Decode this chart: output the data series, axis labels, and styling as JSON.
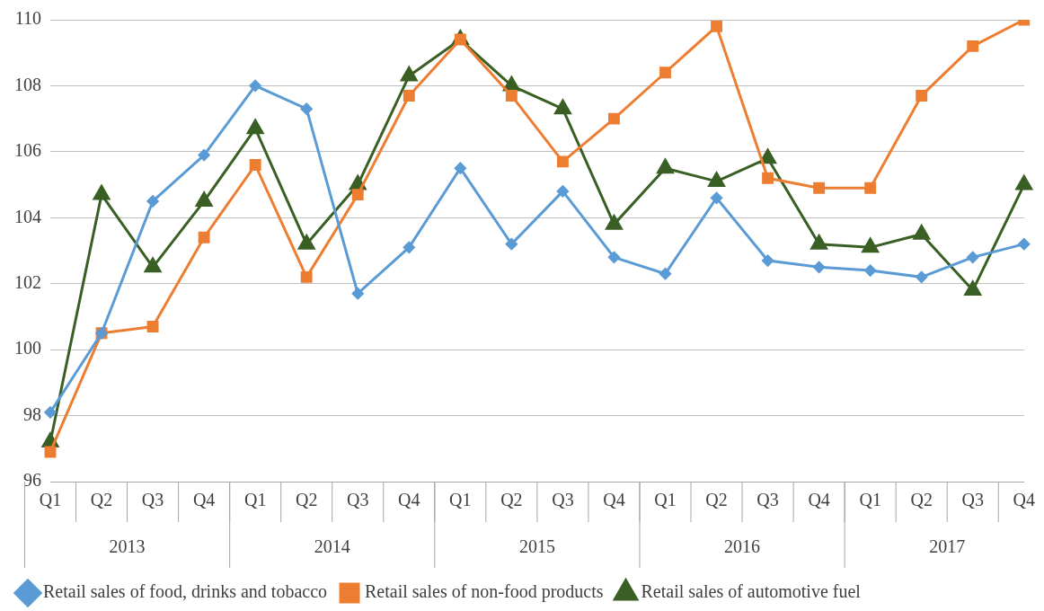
{
  "chart_data": {
    "type": "line",
    "categories": [
      "Q1",
      "Q2",
      "Q3",
      "Q4",
      "Q1",
      "Q2",
      "Q3",
      "Q4",
      "Q1",
      "Q2",
      "Q3",
      "Q4",
      "Q1",
      "Q2",
      "Q3",
      "Q4",
      "Q1",
      "Q2",
      "Q3",
      "Q4"
    ],
    "series": [
      {
        "name": "Retail sales of food, drinks and tobacco",
        "color": "#5b9bd5",
        "marker": "diamond",
        "values": [
          98.1,
          100.5,
          104.5,
          105.9,
          108.0,
          107.3,
          101.7,
          103.1,
          105.5,
          103.2,
          104.8,
          102.8,
          102.3,
          104.6,
          102.7,
          102.5,
          102.4,
          102.2,
          102.8,
          103.2
        ]
      },
      {
        "name": "Retail sales of non-food products",
        "color": "#ed7d31",
        "marker": "square",
        "values": [
          96.9,
          100.5,
          100.7,
          103.4,
          105.6,
          102.2,
          104.7,
          107.7,
          109.4,
          107.7,
          105.7,
          107.0,
          108.4,
          109.8,
          105.2,
          104.9,
          104.9,
          107.7,
          109.2,
          110.0
        ]
      },
      {
        "name": "Retail sales of automotive fuel",
        "color": "#3a5f24",
        "marker": "triangle",
        "values": [
          97.2,
          104.7,
          102.5,
          104.5,
          106.7,
          103.2,
          105.0,
          108.3,
          109.4,
          108.0,
          107.3,
          103.8,
          105.5,
          105.1,
          105.8,
          103.2,
          103.1,
          103.5,
          101.8,
          105.0
        ]
      }
    ],
    "annotations": [
      "2013",
      "2014",
      "2015",
      "2016",
      "2017"
    ],
    "ylim": [
      96,
      110
    ],
    "yticks": [
      96,
      98,
      100,
      102,
      104,
      106,
      108,
      110
    ],
    "grid": "y",
    "legend": "bottom",
    "line_style": "solid"
  }
}
